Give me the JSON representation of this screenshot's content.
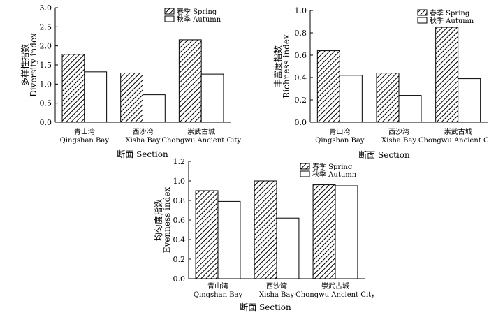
{
  "chart_data": [
    {
      "type": "bar",
      "categories": [
        {
          "zh": "青山湾",
          "en": "Qingshan Bay"
        },
        {
          "zh": "西沙湾",
          "en": "Xisha Bay"
        },
        {
          "zh": "崇武古城",
          "en": "Chongwu Ancient City"
        }
      ],
      "series": [
        {
          "name": "春季 Spring",
          "pattern": "hatch",
          "values": [
            1.78,
            1.29,
            2.16
          ]
        },
        {
          "name": "秋季 Autumn",
          "pattern": "solid-white",
          "values": [
            1.32,
            0.72,
            1.26
          ]
        }
      ],
      "xlabel": "断面 Section",
      "ylabel_zh": "多样性指数",
      "ylabel_en": "Diversity index",
      "ylim": [
        0,
        3.0
      ],
      "yticks": [
        0,
        0.5,
        1.0,
        1.5,
        2.0,
        2.5,
        3.0
      ],
      "ytick_labels": [
        "0.0",
        "0.5",
        "1.0",
        "1.5",
        "2.0",
        "2.5",
        "3.0"
      ],
      "legend_position": "top-right",
      "grid": false
    },
    {
      "type": "bar",
      "categories": [
        {
          "zh": "青山湾",
          "en": "Qingshan Bay"
        },
        {
          "zh": "西沙湾",
          "en": "Xisha Bay"
        },
        {
          "zh": "崇武古城",
          "en": "Chongwu Ancient City"
        }
      ],
      "series": [
        {
          "name": "春季 Spring",
          "pattern": "hatch",
          "values": [
            0.64,
            0.44,
            0.85
          ]
        },
        {
          "name": "秋季 Autumn",
          "pattern": "solid-white",
          "values": [
            0.42,
            0.24,
            0.39
          ]
        }
      ],
      "xlabel": "断面 Section",
      "ylabel_zh": "丰富度指数",
      "ylabel_en": "Richness index",
      "ylim": [
        0,
        1.0
      ],
      "yticks": [
        0,
        0.2,
        0.4,
        0.6,
        0.8,
        1.0
      ],
      "ytick_labels": [
        "0.0",
        "0.2",
        "0.4",
        "0.6",
        "0.8",
        "1.0"
      ],
      "legend_position": "top-right",
      "grid": false
    },
    {
      "type": "bar",
      "categories": [
        {
          "zh": "青山湾",
          "en": "Qingshan Bay"
        },
        {
          "zh": "西沙湾",
          "en": "Xisha Bay"
        },
        {
          "zh": "崇武古城",
          "en": "Chongwu Ancient City"
        }
      ],
      "series": [
        {
          "name": "春季 Spring",
          "pattern": "hatch",
          "values": [
            0.9,
            1.0,
            0.96
          ]
        },
        {
          "name": "秋季 Autumn",
          "pattern": "solid-white",
          "values": [
            0.79,
            0.62,
            0.95
          ]
        }
      ],
      "xlabel": "断面 Section",
      "ylabel_zh": "均匀度指数",
      "ylabel_en": "Evenness index",
      "ylim": [
        0,
        1.2
      ],
      "yticks": [
        0,
        0.2,
        0.4,
        0.6,
        0.8,
        1.0,
        1.2
      ],
      "ytick_labels": [
        "0.0",
        "0.2",
        "0.4",
        "0.6",
        "0.8",
        "1.0",
        "1.2"
      ],
      "legend_position": "top-right",
      "grid": false
    }
  ]
}
